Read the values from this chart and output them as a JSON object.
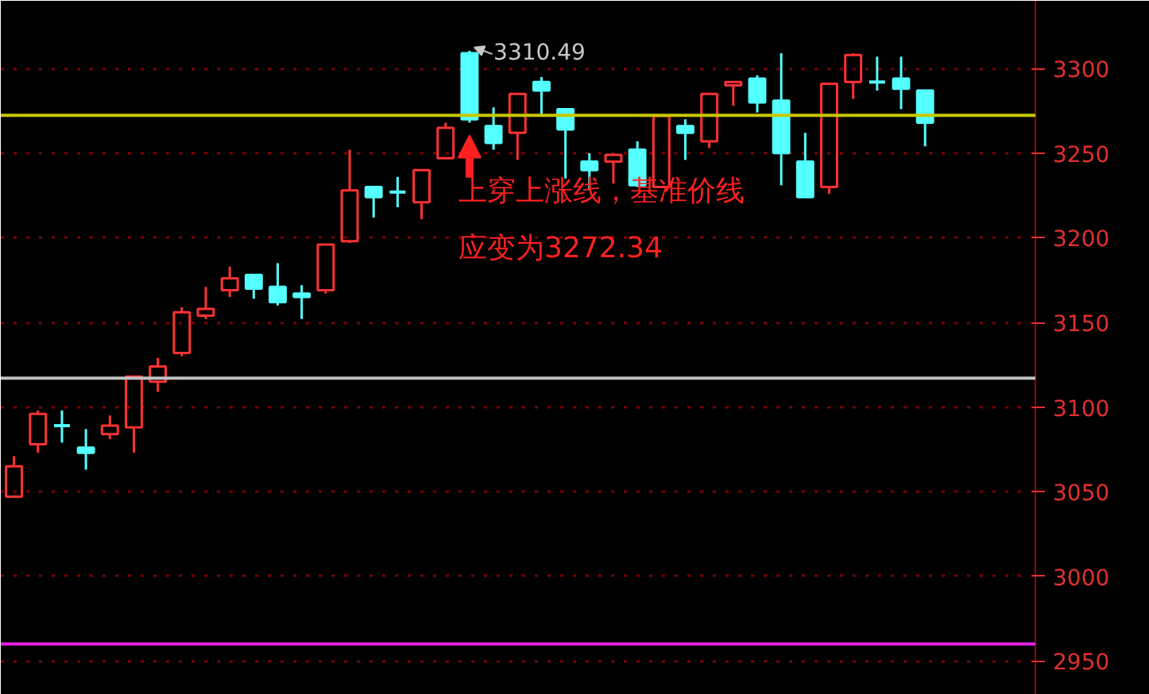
{
  "chart_data": {
    "type": "candlestick",
    "categories": [
      null,
      null,
      null,
      null,
      null,
      null,
      null,
      null,
      null,
      null,
      null,
      null,
      null,
      null,
      null,
      null,
      null,
      null,
      null,
      null,
      null,
      null,
      null,
      null,
      null,
      null,
      null,
      null,
      null,
      null,
      null,
      null,
      null,
      null,
      null,
      null,
      null,
      null,
      null
    ],
    "ohlc": [
      [
        3047,
        3071,
        3047,
        3065
      ],
      [
        3078,
        3098,
        3073,
        3096
      ],
      [
        3089,
        3098,
        3079,
        3089
      ],
      [
        3076,
        3087,
        3063,
        3073
      ],
      [
        3084,
        3095,
        3081,
        3089
      ],
      [
        3088,
        3118,
        3073,
        3118
      ],
      [
        3115,
        3129,
        3109,
        3124
      ],
      [
        3132,
        3159,
        3130,
        3156
      ],
      [
        3154,
        3171,
        3152,
        3158
      ],
      [
        3169,
        3183,
        3165,
        3176
      ],
      [
        3178,
        3178,
        3164,
        3170
      ],
      [
        3171,
        3185,
        3160,
        3162
      ],
      [
        3167,
        3172,
        3152,
        3165
      ],
      [
        3169,
        3196,
        3167,
        3196
      ],
      [
        3198,
        3252,
        3197,
        3228
      ],
      [
        3230,
        3230,
        3212,
        3224
      ],
      [
        3227,
        3236,
        3218,
        3227
      ],
      [
        3221,
        3240,
        3211,
        3240
      ],
      [
        3247,
        3268,
        3247,
        3265
      ],
      [
        3309,
        3310.49,
        3268,
        3270
      ],
      [
        3266,
        3277,
        3252,
        3256
      ],
      [
        3262,
        3285,
        3246,
        3285
      ],
      [
        3292,
        3295,
        3273,
        3287
      ],
      [
        3276,
        3276,
        3235,
        3264
      ],
      [
        3245,
        3250,
        3228,
        3240
      ],
      [
        3245,
        3249,
        3232,
        3249
      ],
      [
        3252,
        3257,
        3230,
        3231
      ],
      [
        3230,
        3272,
        3230,
        3272
      ],
      [
        3266,
        3270,
        3246,
        3262
      ],
      [
        3257,
        3285,
        3253,
        3285
      ],
      [
        3290,
        3292,
        3278,
        3292
      ],
      [
        3294,
        3296,
        3274,
        3280
      ],
      [
        3281,
        3309,
        3231,
        3250
      ],
      [
        3245,
        3262,
        3224,
        3224
      ],
      [
        3230,
        3291,
        3226,
        3291
      ],
      [
        3292,
        3309,
        3282,
        3308
      ],
      [
        3292,
        3307,
        3287,
        3292
      ],
      [
        3294,
        3307,
        3276,
        3288
      ],
      [
        3287,
        3287,
        3254,
        3268
      ]
    ],
    "colors": [
      "#ff3232",
      "#ff3232",
      "#54ffff",
      "#54ffff",
      "#ff3232",
      "#ff3232",
      "#ff3232",
      "#ff3232",
      "#ff3232",
      "#ff3232",
      "#54ffff",
      "#54ffff",
      "#54ffff",
      "#ff3232",
      "#ff3232",
      "#54ffff",
      "#54ffff",
      "#ff3232",
      "#ff3232",
      "#54ffff",
      "#54ffff",
      "#ff3232",
      "#54ffff",
      "#54ffff",
      "#54ffff",
      "#ff3232",
      "#54ffff",
      "#ff3232",
      "#54ffff",
      "#ff3232",
      "#ff3232",
      "#54ffff",
      "#54ffff",
      "#54ffff",
      "#ff3232",
      "#ff3232",
      "#54ffff",
      "#54ffff",
      "#54ffff"
    ],
    "ylim": [
      2930,
      3340
    ],
    "yticks": [
      2950,
      3000,
      3050,
      3100,
      3150,
      3200,
      3250,
      3300
    ],
    "grid": "y",
    "ref_lines": [
      {
        "axis": "y",
        "value": 3272.34,
        "color": "#c8c800",
        "line_style": "solid"
      },
      {
        "axis": "y",
        "value": 3117,
        "color": "#c0c0c0",
        "line_style": "solid"
      },
      {
        "axis": "y",
        "value": 2960,
        "color": "#e020e0",
        "line_style": "solid"
      }
    ],
    "annotations": [
      "3310.49",
      "上穿上涨线，基准价线",
      "应变为3272.34"
    ]
  }
}
